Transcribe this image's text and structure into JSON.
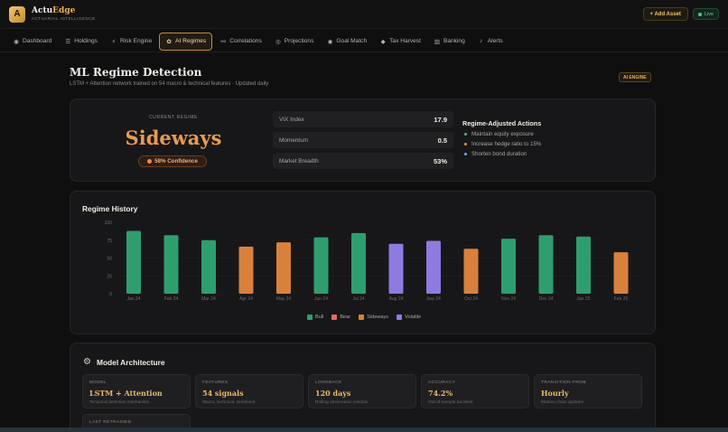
{
  "app": {
    "logo_letter": "A",
    "name_prefix": "Actu",
    "name_accent": "Edge",
    "tagline": "ACTUARIAL INTELLIGENCE",
    "add_asset_label": "+ Add Asset",
    "live_label": "Live"
  },
  "nav": [
    {
      "label": "Dashboard",
      "icon": "dashboard-icon",
      "glyph": "◉"
    },
    {
      "label": "Holdings",
      "icon": "list-icon",
      "glyph": "☰"
    },
    {
      "label": "Risk Engine",
      "icon": "bolt-icon",
      "glyph": "⚡"
    },
    {
      "label": "AI Regimes",
      "icon": "brain-icon",
      "glyph": "✿",
      "active": true
    },
    {
      "label": "Correlations",
      "icon": "link-icon",
      "glyph": "⚯"
    },
    {
      "label": "Projections",
      "icon": "target-icon",
      "glyph": "◎"
    },
    {
      "label": "Goal Match",
      "icon": "goal-icon",
      "glyph": "◉"
    },
    {
      "label": "Tax Harvest",
      "icon": "gem-icon",
      "glyph": "◆"
    },
    {
      "label": "Banking",
      "icon": "bank-icon",
      "glyph": "▥"
    },
    {
      "label": "Alerts",
      "icon": "bell-icon",
      "glyph": "♪"
    }
  ],
  "page": {
    "title": "ML Regime Detection",
    "subtitle": "LSTM + Attention network trained on 54 macro & technical features · Updated daily",
    "badge": "AI ENGINE"
  },
  "regime": {
    "label": "CURRENT REGIME",
    "value": "Sideways",
    "confidence_label": "58% Confidence",
    "confidence_color": "#e8904a"
  },
  "metrics": [
    {
      "label": "VIX Index",
      "value": "17.9"
    },
    {
      "label": "Momentum",
      "value": "0.5"
    },
    {
      "label": "Market Breadth",
      "value": "53%"
    }
  ],
  "actions": {
    "title": "Regime-Adjusted Actions",
    "items": [
      {
        "text": "Maintain equity exposure",
        "color": "#3fbf7f"
      },
      {
        "text": "Increase hedge ratio to 15%",
        "color": "#e8904a"
      },
      {
        "text": "Shorten bond duration",
        "color": "#7aa6e8"
      }
    ]
  },
  "history": {
    "title": "Regime History"
  },
  "chart_data": {
    "type": "bar",
    "categories": [
      "Jan 24",
      "Feb 24",
      "Mar 24",
      "Apr 24",
      "May 24",
      "Jun 24",
      "Jul 24",
      "Aug 24",
      "Sep 24",
      "Oct 24",
      "Nov 24",
      "Dec 24",
      "Jan 25",
      "Feb 25"
    ],
    "values": [
      88,
      82,
      75,
      66,
      72,
      79,
      85,
      70,
      74,
      63,
      77,
      82,
      80,
      58
    ],
    "regimes": [
      "Bull",
      "Bull",
      "Bull",
      "Sideways",
      "Sideways",
      "Bull",
      "Bull",
      "Volatile",
      "Volatile",
      "Sideways",
      "Bull",
      "Bull",
      "Bull",
      "Sideways"
    ],
    "ylim": [
      0,
      100
    ],
    "yticks": [
      "100",
      "75",
      "50",
      "25",
      "0"
    ],
    "legend": [
      {
        "name": "Bull",
        "color": "#2f9e6f"
      },
      {
        "name": "Bear",
        "color": "#e06a6a"
      },
      {
        "name": "Sideways",
        "color": "#d9813c"
      },
      {
        "name": "Volatile",
        "color": "#8f7ae0"
      }
    ],
    "legend_position": "bottom"
  },
  "architecture": {
    "title": "Model Architecture",
    "tiles": [
      {
        "label": "MODEL",
        "value": "LSTM + Attention",
        "sub": "Temporal detection mechanism"
      },
      {
        "label": "FEATURES",
        "value": "54 signals",
        "sub": "Macro, technical, sentiment"
      },
      {
        "label": "LOOKBACK",
        "value": "120 days",
        "sub": "Rolling observation window"
      },
      {
        "label": "ACCURACY",
        "value": "74.2%",
        "sub": "Out-of-sample backtest"
      },
      {
        "label": "TRANSITION PROB",
        "value": "Hourly",
        "sub": "Markov chain updates"
      },
      {
        "label": "LAST RETRAINED",
        "value": "",
        "sub": ""
      }
    ]
  }
}
